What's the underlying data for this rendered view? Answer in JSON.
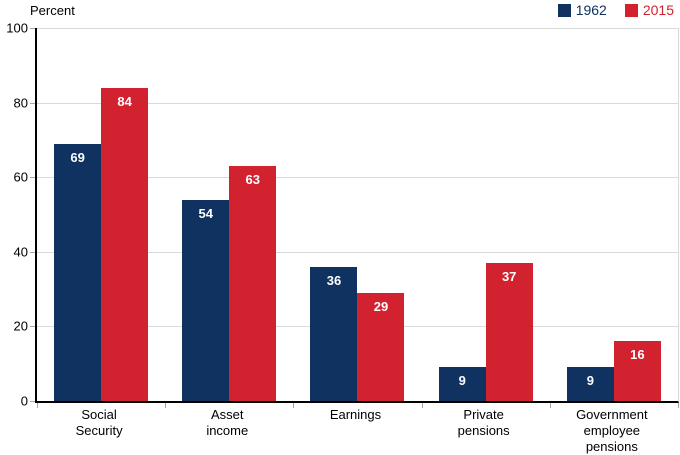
{
  "colors": {
    "background": "#ffffff",
    "grid": "#d9d9d9",
    "axis": "#000000",
    "tick": "#a6a6a6",
    "bar_1962": "#0f3260",
    "bar_2015": "#d2222f",
    "value_label": "#ffffff"
  },
  "chart_data": {
    "type": "bar",
    "title": "",
    "ylabel": "Percent",
    "xlabel": "",
    "ylim": [
      0,
      100
    ],
    "yticks": [
      0,
      20,
      40,
      60,
      80,
      100
    ],
    "grid": "horizontal",
    "legend_position": "top-right",
    "categories": [
      "Social Security",
      "Asset income",
      "Earnings",
      "Private pensions",
      "Government employee pensions"
    ],
    "series": [
      {
        "name": "1962",
        "color": "#0f3260",
        "values": [
          69,
          54,
          36,
          9,
          9
        ]
      },
      {
        "name": "2015",
        "color": "#d2222f",
        "values": [
          84,
          63,
          29,
          37,
          16
        ]
      }
    ],
    "value_labels_shown": true
  }
}
